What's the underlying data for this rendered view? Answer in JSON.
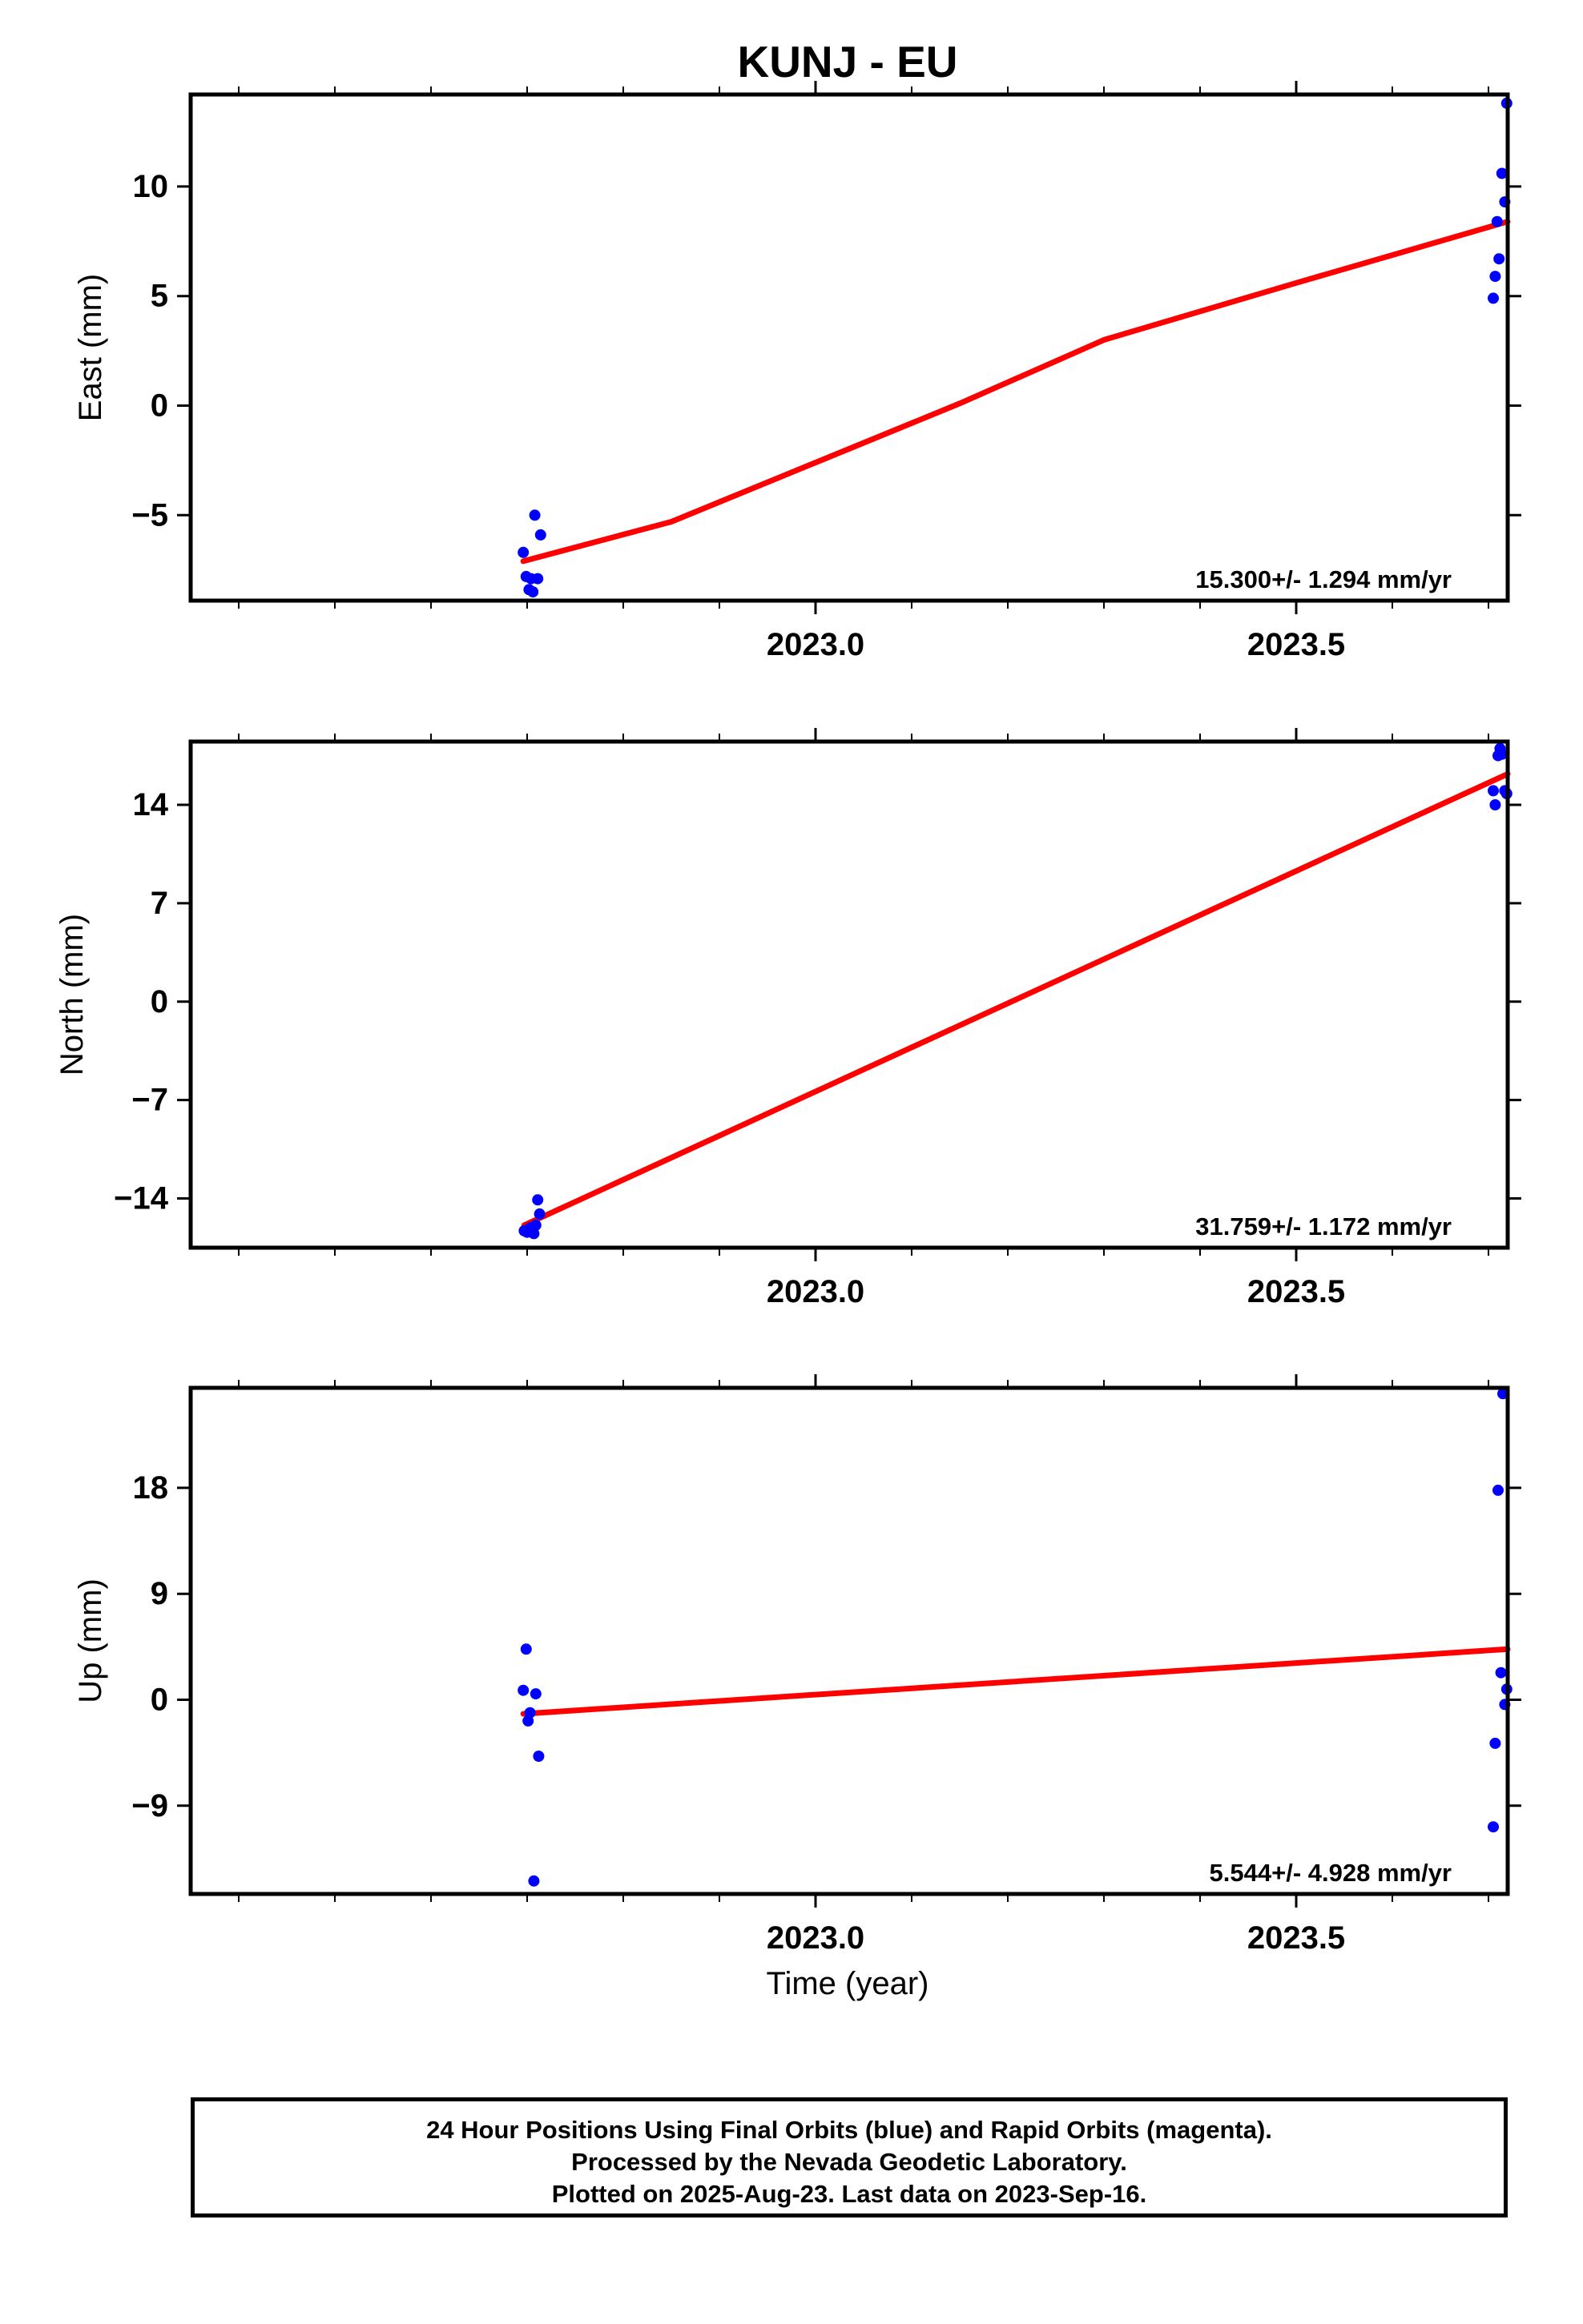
{
  "title": "KUNJ - EU",
  "xlabel": "Time (year)",
  "caption": {
    "line1": "24 Hour Positions Using Final Orbits (blue) and Rapid Orbits (magenta).",
    "line2": "Processed by the Nevada Geodetic Laboratory.",
    "line3": "Plotted on 2025-Aug-23. Last data on 2023-Sep-16."
  },
  "colors": {
    "points": "#0000ff",
    "fit": "#ff0000",
    "axes": "#000000"
  },
  "chart_data": [
    {
      "type": "scatter",
      "ylabel": "East (mm)",
      "xlim": [
        2022.35,
        2023.72
      ],
      "ylim": [
        -8.9,
        14.2
      ],
      "xticks": [
        2023.0,
        2023.5
      ],
      "xtick_labels": [
        "2023.0",
        "2023.5"
      ],
      "yticks": [
        -5,
        0,
        5,
        10
      ],
      "ytick_labels": [
        "−5",
        "0",
        "5",
        "10"
      ],
      "rate_label": "15.300+/- 1.294 mm/yr",
      "points": [
        [
          2022.696,
          -6.7
        ],
        [
          2022.699,
          -7.8
        ],
        [
          2022.702,
          -8.4
        ],
        [
          2022.704,
          -7.9
        ],
        [
          2022.706,
          -8.5
        ],
        [
          2022.708,
          -5.0
        ],
        [
          2022.711,
          -7.9
        ],
        [
          2022.714,
          -5.9
        ],
        [
          2023.705,
          4.9
        ],
        [
          2023.707,
          5.9
        ],
        [
          2023.709,
          8.4
        ],
        [
          2023.711,
          6.7
        ],
        [
          2023.714,
          10.6
        ],
        [
          2023.717,
          9.3
        ],
        [
          2023.719,
          13.8
        ]
      ],
      "fit": [
        [
          2022.696,
          -7.1
        ],
        [
          2022.85,
          -5.3
        ],
        [
          2023.0,
          -2.6
        ],
        [
          2023.15,
          0.1
        ],
        [
          2023.3,
          3.0
        ],
        [
          2023.5,
          5.6
        ],
        [
          2023.72,
          8.4
        ]
      ]
    },
    {
      "type": "scatter",
      "ylabel": "North (mm)",
      "xlim": [
        2022.35,
        2023.72
      ],
      "ylim": [
        -17.5,
        18.5
      ],
      "xticks": [
        2023.0,
        2023.5
      ],
      "xtick_labels": [
        "2023.0",
        "2023.5"
      ],
      "yticks": [
        -14,
        -7,
        0,
        7,
        14
      ],
      "ytick_labels": [
        "−14",
        "−7",
        "0",
        "7",
        "14"
      ],
      "rate_label": "31.759+/- 1.172 mm/yr",
      "points": [
        [
          2022.697,
          -16.3
        ],
        [
          2022.7,
          -16.4
        ],
        [
          2022.703,
          -16.1
        ],
        [
          2022.705,
          -16.3
        ],
        [
          2022.707,
          -16.5
        ],
        [
          2022.709,
          -15.9
        ],
        [
          2022.711,
          -14.1
        ],
        [
          2022.713,
          -15.1
        ],
        [
          2023.705,
          15.0
        ],
        [
          2023.707,
          14.0
        ],
        [
          2023.71,
          17.5
        ],
        [
          2023.712,
          18.0
        ],
        [
          2023.714,
          17.6
        ],
        [
          2023.717,
          15.0
        ],
        [
          2023.719,
          14.8
        ]
      ],
      "fit": [
        [
          2022.697,
          -15.9
        ],
        [
          2023.72,
          16.2
        ]
      ]
    },
    {
      "type": "scatter",
      "ylabel": "Up (mm)",
      "xlim": [
        2022.35,
        2023.72
      ],
      "ylim": [
        -16.5,
        26.5
      ],
      "xticks": [
        2023.0,
        2023.5
      ],
      "xtick_labels": [
        "2023.0",
        "2023.5"
      ],
      "yticks": [
        -9,
        0,
        9,
        18
      ],
      "ytick_labels": [
        "−9",
        "0",
        "9",
        "18"
      ],
      "rate_label": "5.544+/- 4.928 mm/yr",
      "points": [
        [
          2022.696,
          0.8
        ],
        [
          2022.699,
          4.3
        ],
        [
          2022.701,
          -1.8
        ],
        [
          2022.703,
          -1.1
        ],
        [
          2022.707,
          -15.4
        ],
        [
          2022.709,
          0.5
        ],
        [
          2022.712,
          -4.8
        ],
        [
          2023.705,
          -10.8
        ],
        [
          2023.707,
          -3.7
        ],
        [
          2023.71,
          17.8
        ],
        [
          2023.713,
          2.3
        ],
        [
          2023.715,
          26.0
        ],
        [
          2023.717,
          -0.4
        ],
        [
          2023.719,
          0.9
        ]
      ],
      "fit": [
        [
          2022.696,
          -1.2
        ],
        [
          2023.72,
          4.3
        ]
      ]
    }
  ]
}
